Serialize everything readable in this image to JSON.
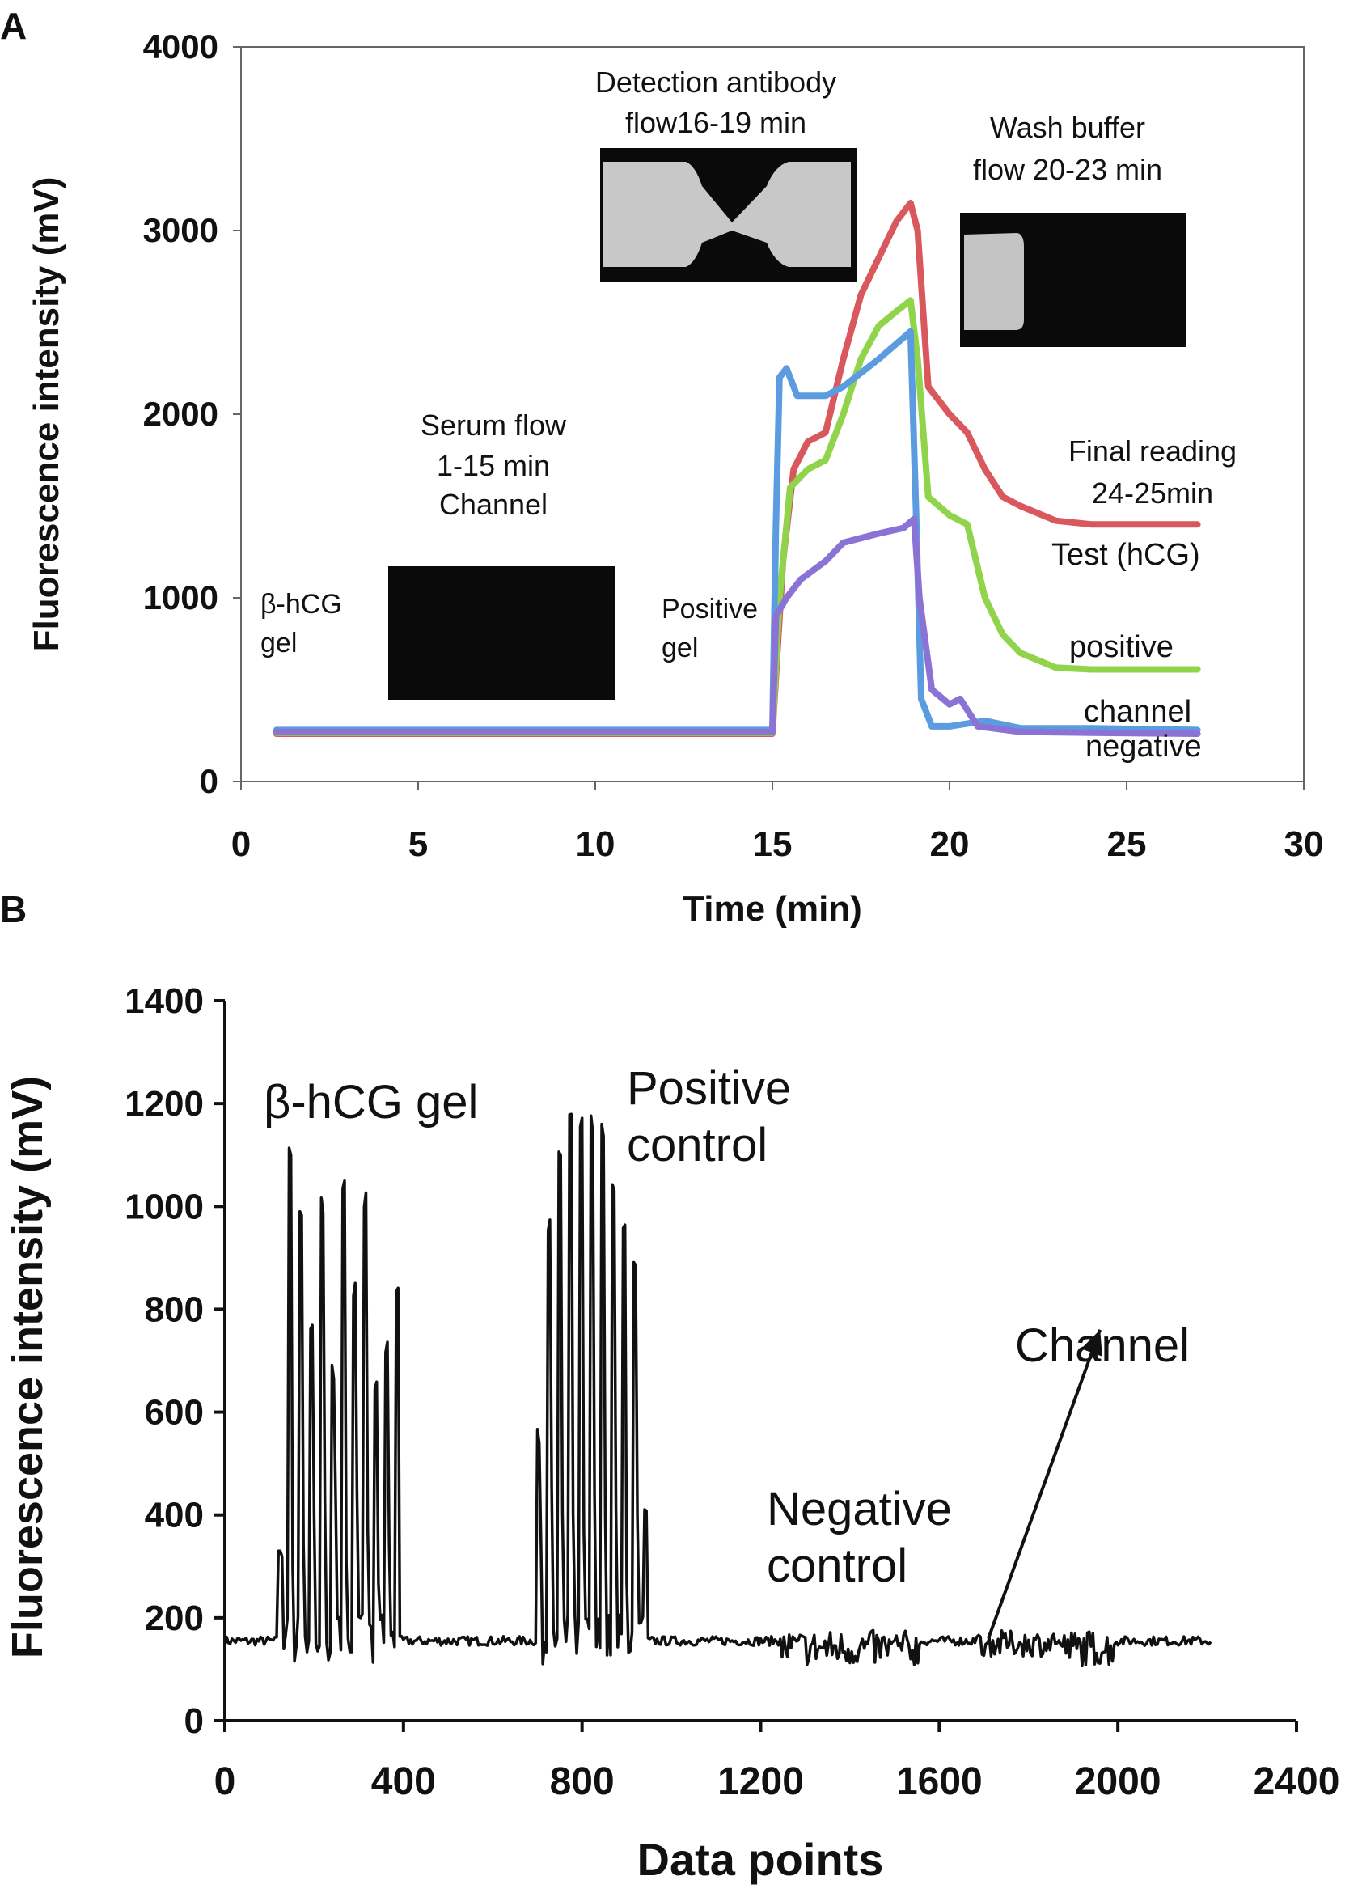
{
  "chart_data": [
    {
      "panel": "A",
      "type": "line",
      "title": "",
      "xlabel": "Time (min)",
      "ylabel": "Fluorescence intensity (mV)",
      "xlim": [
        0,
        30
      ],
      "ylim": [
        0,
        4000
      ],
      "xticks": [
        "0",
        "5",
        "10",
        "15",
        "20",
        "25",
        "30"
      ],
      "yticks": [
        "0",
        "1000",
        "2000",
        "3000",
        "4000"
      ],
      "series": [
        {
          "name": "Test (hCG)",
          "color": "#d9585e",
          "points": [
            [
              1,
              260
            ],
            [
              15,
              260
            ],
            [
              15.3,
              1200
            ],
            [
              15.6,
              1700
            ],
            [
              16,
              1850
            ],
            [
              16.5,
              1900
            ],
            [
              17,
              2300
            ],
            [
              17.5,
              2650
            ],
            [
              18,
              2850
            ],
            [
              18.5,
              3050
            ],
            [
              18.9,
              3150
            ],
            [
              19.1,
              3000
            ],
            [
              19.4,
              2150
            ],
            [
              20,
              2000
            ],
            [
              20.5,
              1900
            ],
            [
              21,
              1700
            ],
            [
              21.5,
              1550
            ],
            [
              22,
              1500
            ],
            [
              23,
              1420
            ],
            [
              24,
              1400
            ],
            [
              27,
              1400
            ]
          ]
        },
        {
          "name": "positive",
          "color": "#8fd44a",
          "points": [
            [
              1,
              265
            ],
            [
              15,
              265
            ],
            [
              15.2,
              1000
            ],
            [
              15.5,
              1600
            ],
            [
              16,
              1700
            ],
            [
              16.5,
              1750
            ],
            [
              17,
              2000
            ],
            [
              17.5,
              2300
            ],
            [
              18,
              2480
            ],
            [
              18.5,
              2560
            ],
            [
              18.9,
              2620
            ],
            [
              19.1,
              2300
            ],
            [
              19.4,
              1550
            ],
            [
              20,
              1450
            ],
            [
              20.5,
              1400
            ],
            [
              21,
              1000
            ],
            [
              21.5,
              800
            ],
            [
              22,
              700
            ],
            [
              23,
              620
            ],
            [
              24,
              610
            ],
            [
              27,
              610
            ]
          ]
        },
        {
          "name": "channel",
          "color": "#5b9be0",
          "points": [
            [
              1,
              280
            ],
            [
              15,
              280
            ],
            [
              15.1,
              1400
            ],
            [
              15.2,
              2200
            ],
            [
              15.4,
              2250
            ],
            [
              15.7,
              2100
            ],
            [
              16.5,
              2100
            ],
            [
              17,
              2150
            ],
            [
              18,
              2300
            ],
            [
              18.9,
              2450
            ],
            [
              19.05,
              1500
            ],
            [
              19.2,
              450
            ],
            [
              19.5,
              300
            ],
            [
              20,
              300
            ],
            [
              21,
              330
            ],
            [
              21.5,
              310
            ],
            [
              22,
              290
            ],
            [
              24,
              290
            ],
            [
              27,
              280
            ]
          ]
        },
        {
          "name": "negative",
          "color": "#8b73d6",
          "points": [
            [
              1,
              270
            ],
            [
              15,
              270
            ],
            [
              15.1,
              900
            ],
            [
              15.4,
              1000
            ],
            [
              15.8,
              1100
            ],
            [
              16.5,
              1200
            ],
            [
              17,
              1300
            ],
            [
              18,
              1350
            ],
            [
              18.7,
              1380
            ],
            [
              19,
              1430
            ],
            [
              19.15,
              1000
            ],
            [
              19.5,
              500
            ],
            [
              20,
              420
            ],
            [
              20.3,
              450
            ],
            [
              20.8,
              300
            ],
            [
              22,
              270
            ],
            [
              24,
              265
            ],
            [
              27,
              260
            ]
          ]
        }
      ],
      "annotations": {
        "serum_flow": [
          "Serum flow",
          "1-15 min",
          "Channel"
        ],
        "detection": [
          "Detection antibody",
          "flow16-19 min"
        ],
        "wash": [
          "Wash buffer",
          "flow 20-23 min"
        ],
        "final_reading": [
          "Final reading",
          "24-25min"
        ],
        "bhcg_gel": [
          "β-hCG",
          "gel"
        ],
        "positive_gel": [
          "Positive",
          "gel"
        ],
        "test_label": "Test (hCG)",
        "positive_label": "positive",
        "channel_label": "channel",
        "negative_label": "negative"
      }
    },
    {
      "panel": "B",
      "type": "line",
      "title": "",
      "xlabel": "Data points",
      "ylabel": "Fluorescence intensity (mV)",
      "xlim": [
        0,
        2400
      ],
      "ylim": [
        0,
        1400
      ],
      "xticks": [
        "0",
        "400",
        "800",
        "1200",
        "1600",
        "2000",
        "2400"
      ],
      "yticks": [
        "0",
        "200",
        "400",
        "600",
        "800",
        "1000",
        "1200",
        "1400"
      ],
      "series": [
        {
          "name": "signal",
          "color": "#111111",
          "baseline": 155,
          "x_end": 2210,
          "bursts": [
            {
              "start": 120,
              "end": 390,
              "peaks": [
                350,
                1130,
                1000,
                800,
                1040,
                700,
                1050,
                880,
                1040,
                700,
                760,
                860
              ]
            },
            {
              "start": 700,
              "end": 945,
              "peaks": [
                600,
                1000,
                1140,
                1200,
                1210,
                1200,
                1180,
                1160,
                1080,
                1000,
                940,
                460
              ]
            }
          ]
        }
      ],
      "annotations": {
        "bhcg_gel": "β-hCG gel",
        "positive_control": [
          "Positive",
          "control"
        ],
        "negative_control": [
          "Negative",
          "control"
        ],
        "channel": "Channel",
        "arrow_from": [
          1710,
          160
        ],
        "arrow_to": [
          1960,
          760
        ]
      }
    }
  ],
  "panel_labels": {
    "a": "A",
    "b": "B"
  }
}
